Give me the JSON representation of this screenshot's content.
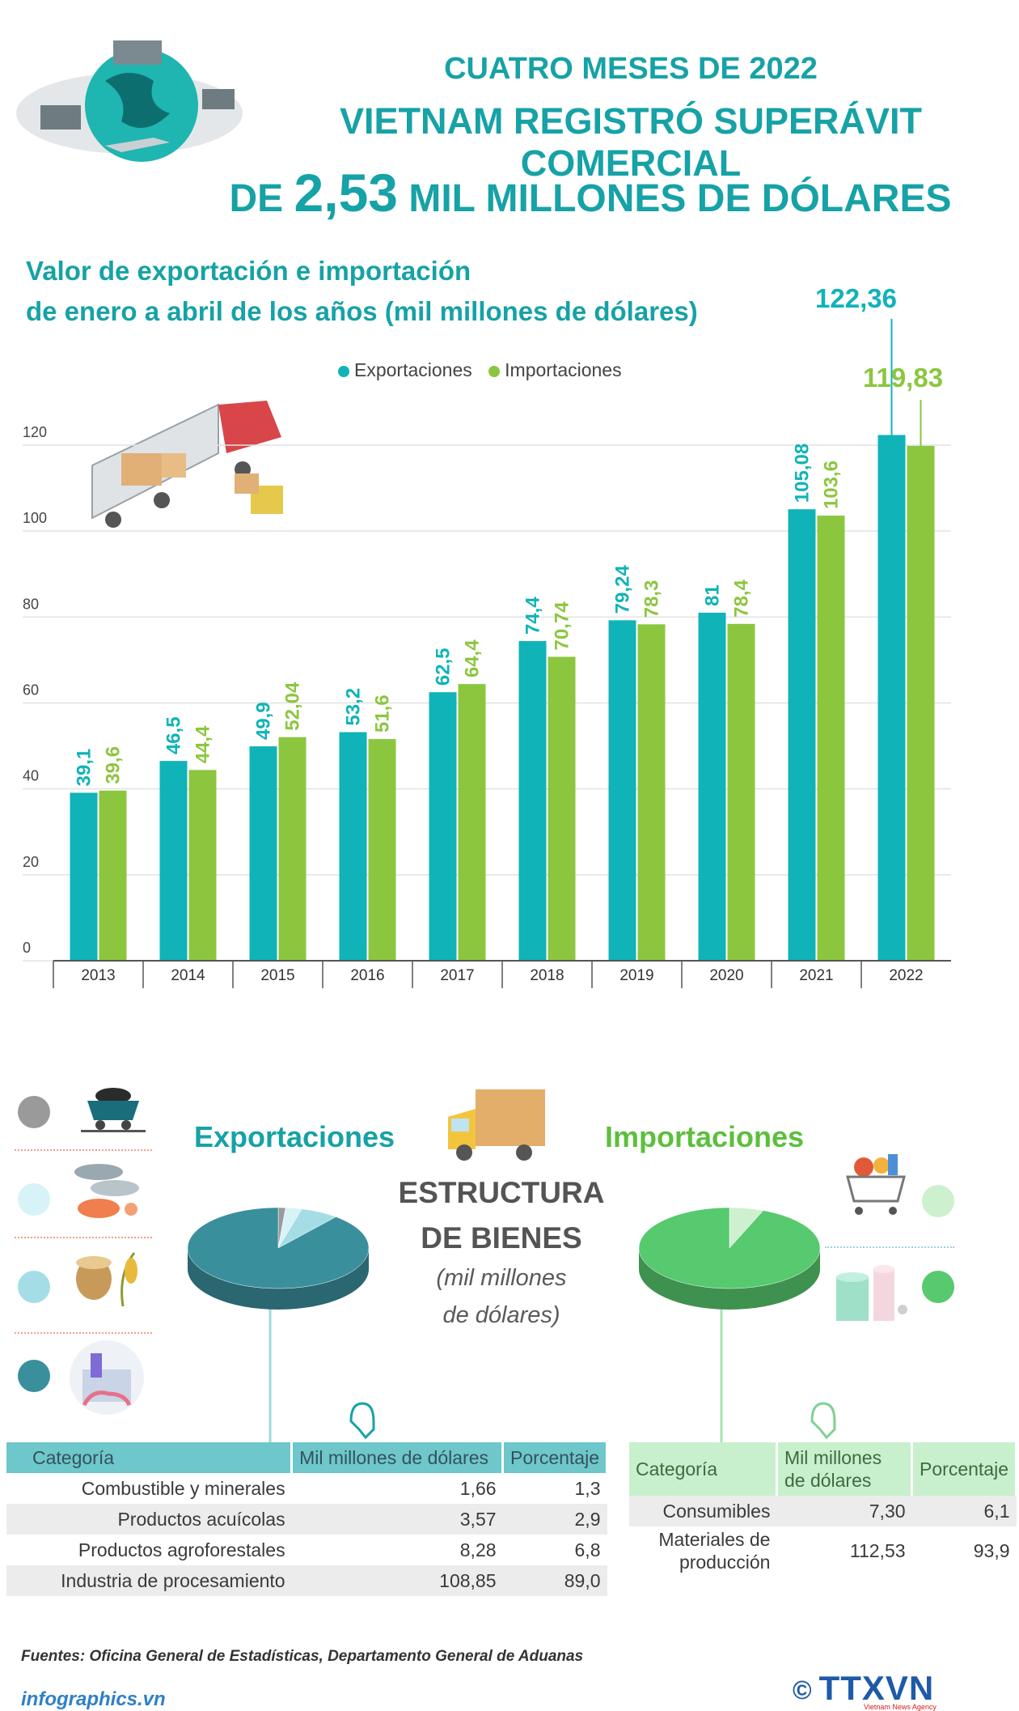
{
  "header": {
    "line1": "CUATRO MESES DE 2022",
    "line2": "VIETNAM REGISTRÓ SUPERÁVIT COMERCIAL",
    "line3_pre": "DE",
    "line3_big": "2,53",
    "line3_post": "MIL MILLONES DE DÓLARES"
  },
  "chart_data": {
    "type": "bar",
    "title": "Valor de exportación e importación de enero a abril de los años (mil millones de dólares)",
    "title_line1": "Valor de exportación e importación",
    "title_line2": "de enero a abril de los años (mil millones de dólares)",
    "categories": [
      "2013",
      "2014",
      "2015",
      "2016",
      "2017",
      "2018",
      "2019",
      "2020",
      "2021",
      "2022"
    ],
    "series": [
      {
        "name": "Exportaciones",
        "color": "#10b3b8",
        "values": [
          39.1,
          46.5,
          49.9,
          53.2,
          62.5,
          74.4,
          79.24,
          81,
          105.08,
          122.36
        ],
        "labels": [
          "39,1",
          "46,5",
          "49,9",
          "53,2",
          "62,5",
          "74,4",
          "79,24",
          "81",
          "105,08",
          "122,36"
        ]
      },
      {
        "name": "Importaciones",
        "color": "#8cc63f",
        "values": [
          39.6,
          44.4,
          52.04,
          51.6,
          64.4,
          70.74,
          78.3,
          78.4,
          103.6,
          119.83
        ],
        "labels": [
          "39,6",
          "44,4",
          "52,04",
          "51,6",
          "64,4",
          "70,74",
          "78,3",
          "78,4",
          "103,6",
          "119,83"
        ]
      }
    ],
    "yticks": [
      "0",
      "20",
      "40",
      "60",
      "80",
      "100",
      "120"
    ],
    "ylim": [
      0,
      120
    ],
    "grid": true,
    "legend": "top-center"
  },
  "structure": {
    "exports_title": "Exportaciones",
    "imports_title": "Importaciones",
    "title_line1": "ESTRUCTURA",
    "title_line2": "DE BIENES",
    "unit_line1": "(mil millones",
    "unit_line2": "de dólares)",
    "exports_table": {
      "headers": [
        "Categoría",
        "Mil millones de dólares",
        "Porcentaje"
      ],
      "rows": [
        {
          "category": "Combustible y minerales",
          "value": "1,66",
          "pct": "1,3"
        },
        {
          "category": "Productos acuícolas",
          "value": "3,57",
          "pct": "2,9"
        },
        {
          "category": "Productos agroforestales",
          "value": "8,28",
          "pct": "6,8"
        },
        {
          "category": "Industria de procesamiento",
          "value": "108,85",
          "pct": "89,0"
        }
      ],
      "pie_values": [
        1.3,
        2.9,
        6.8,
        89.0
      ],
      "pie_colors": [
        "#9a9a9a",
        "#d8f3f7",
        "#a4dde5",
        "#3a8f9c"
      ]
    },
    "imports_table": {
      "headers": [
        "Categoría",
        "Mil millones de dólares",
        "Porcentaje"
      ],
      "rows": [
        {
          "category": "Consumibles",
          "value": "7,30",
          "pct": "6,1"
        },
        {
          "category": "Materiales de producción",
          "value": "112,53",
          "pct": "93,9"
        }
      ],
      "pie_values": [
        6.1,
        93.9
      ],
      "pie_colors": [
        "#cdf0cf",
        "#57c96e"
      ]
    }
  },
  "footer": {
    "source": "Fuentes: Oficina General de Estadísticas, Departamento General de Aduanas",
    "site": "infographics.vn",
    "agency": "TTXVN",
    "agency_sub": "Vietnam News Agency",
    "copyright": "©"
  }
}
